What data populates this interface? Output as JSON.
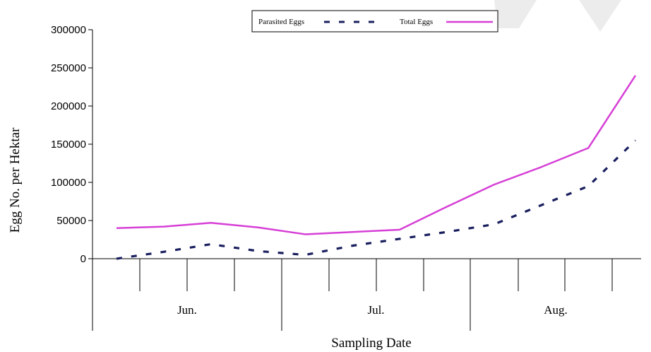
{
  "chart_data": {
    "type": "line",
    "xlabel": "Sampling Date",
    "ylabel": "Egg No. per Hektar",
    "ylim": [
      0,
      300000
    ],
    "yticks": [
      0,
      50000,
      100000,
      150000,
      200000,
      250000,
      300000
    ],
    "month_labels": [
      "Jun.",
      "Jul.",
      "Aug."
    ],
    "x": [
      1,
      2,
      3,
      4,
      5,
      6,
      7,
      8,
      9,
      10,
      11,
      12
    ],
    "series": [
      {
        "name": "Total Eggs",
        "color": "#d63fd6",
        "style": "solid",
        "values": [
          40000,
          42000,
          47000,
          41000,
          32000,
          35000,
          38000,
          68000,
          97000,
          120000,
          145000,
          240000
        ]
      },
      {
        "name": "Parasited Eggs",
        "color": "#1a1f5e",
        "style": "dashed",
        "values": [
          0,
          9000,
          19000,
          10000,
          5000,
          17000,
          26000,
          35000,
          45000,
          70000,
          95000,
          155000
        ]
      }
    ],
    "legend": {
      "position": "top-center",
      "entries": [
        "Parasited Eggs",
        "Total Eggs"
      ]
    },
    "grid": false
  }
}
